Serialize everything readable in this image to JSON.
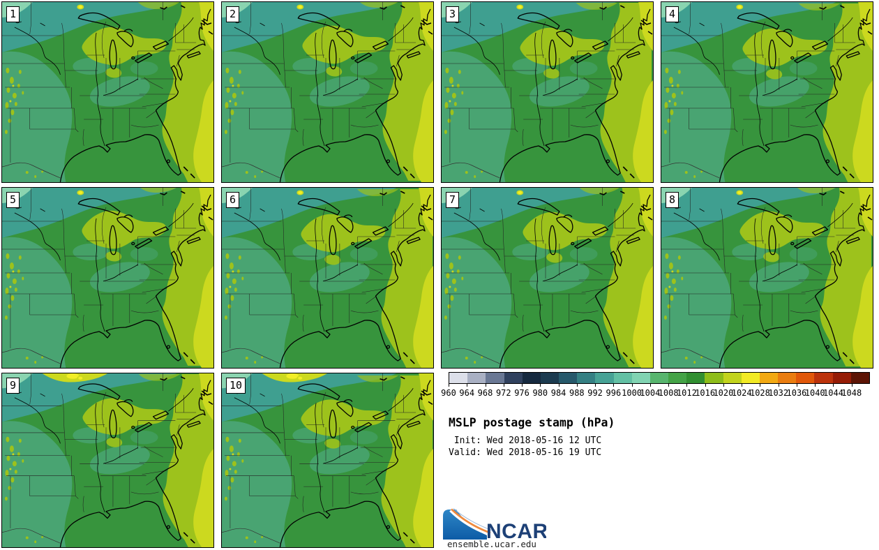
{
  "figure": {
    "title": "MSLP postage stamp (hPa)",
    "init_label": " Init: Wed 2018-05-16 12 UTC",
    "valid_label": "Valid: Wed 2018-05-16 19 UTC",
    "logo_text": "NCAR",
    "credit_url": "ensemble.ucar.edu"
  },
  "panels": [
    {
      "member": "1"
    },
    {
      "member": "2"
    },
    {
      "member": "3"
    },
    {
      "member": "4"
    },
    {
      "member": "5"
    },
    {
      "member": "6"
    },
    {
      "member": "7"
    },
    {
      "member": "8"
    },
    {
      "member": "9"
    },
    {
      "member": "10"
    }
  ],
  "colorbar": {
    "units": "hPa",
    "tick_labels": [
      "960",
      "964",
      "968",
      "972",
      "976",
      "980",
      "984",
      "988",
      "992",
      "996",
      "1000",
      "1004",
      "1008",
      "1012",
      "1016",
      "1020",
      "1024",
      "1028",
      "1032",
      "1036",
      "1040",
      "1044",
      "1048"
    ],
    "segment_colors": [
      "#dcdfe9",
      "#a9b0c3",
      "#6a7894",
      "#30415e",
      "#16293f",
      "#1c3b50",
      "#27596b",
      "#358083",
      "#47a295",
      "#63c0a4",
      "#81d3b2",
      "#58b56e",
      "#44a347",
      "#318f31",
      "#8ebd1a",
      "#c2d31d",
      "#f2ea25",
      "#f2a913",
      "#ea7d10",
      "#e1580a",
      "#bc330c",
      "#951c06",
      "#5c1405"
    ]
  },
  "map_palette": {
    "base_green": "#37943d",
    "teal_north": "#3f9f90",
    "sea_green": "#49a472",
    "mint_corner": "#8ad4b0",
    "olive": "#9dc21c",
    "chartreuse": "#ccd91f",
    "yellow_spot": "#f2ee27",
    "coastline": "#000000",
    "state_borders": "#222222"
  },
  "logo_colors": {
    "swoosh_blue_top": "#2e86c6",
    "swoosh_blue_bottom": "#0d5ca6",
    "swoosh_orange": "#ef8a3e",
    "ncar_text_blue": "#1d4076"
  }
}
